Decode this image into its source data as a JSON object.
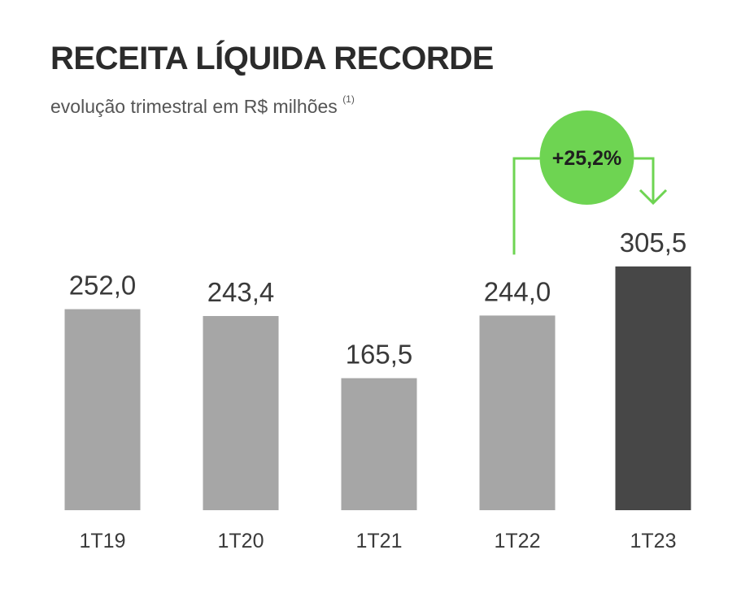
{
  "chart_data": {
    "type": "bar",
    "title": "RECEITA LÍQUIDA RECORDE",
    "subtitle": "evolução trimestral em R$ milhões",
    "subtitle_note": "(1)",
    "categories": [
      "1T19",
      "1T20",
      "1T21",
      "1T22",
      "1T23"
    ],
    "values": [
      252.0,
      243.4,
      165.5,
      244.0,
      305.5
    ],
    "value_labels": [
      "252,0",
      "243,4",
      "165,5",
      "244,0",
      "305,5"
    ],
    "bar_colors": [
      "#a6a6a6",
      "#a6a6a6",
      "#a6a6a6",
      "#a6a6a6",
      "#474747"
    ],
    "annotation": {
      "text": "+25,2%",
      "from_category": "1T22",
      "to_category": "1T23",
      "color": "#6ed452"
    },
    "ylim": [
      0,
      305.5
    ],
    "grid": false,
    "legend": "none"
  }
}
